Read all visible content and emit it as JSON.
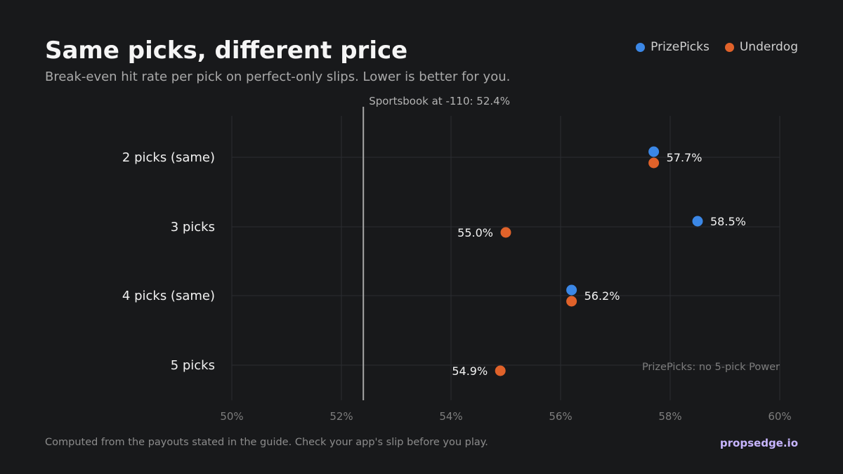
{
  "header": {
    "title": "Same picks, different price",
    "subtitle": "Break-even hit rate per pick on perfect-only slips. Lower is better for you."
  },
  "legend": [
    {
      "label": "PrizePicks",
      "color": "#3b87e6"
    },
    {
      "label": "Underdog",
      "color": "#e0622a"
    }
  ],
  "chart_data": {
    "type": "scatter",
    "title": "Same picks, different price",
    "subtitle": "Break-even hit rate per pick on perfect-only slips. Lower is better for you.",
    "categories": [
      "2 picks (same)",
      "3 picks",
      "4 picks (same)",
      "5 picks"
    ],
    "series": [
      {
        "name": "PrizePicks",
        "color": "#3b87e6",
        "values": [
          57.7,
          58.5,
          56.2,
          null
        ]
      },
      {
        "name": "Underdog",
        "color": "#e0622a",
        "values": [
          57.7,
          55.0,
          56.2,
          54.9
        ]
      }
    ],
    "value_labels": [
      "57.7%",
      "58.5%",
      "55.0%",
      "56.2%",
      "54.9%"
    ],
    "xlim": [
      50,
      60
    ],
    "xticks": [
      50,
      52,
      54,
      56,
      58,
      60
    ],
    "xtick_labels": [
      "50%",
      "52%",
      "54%",
      "56%",
      "58%",
      "60%"
    ],
    "reference_line": {
      "value": 52.4,
      "label": "Sportsbook at -110: 52.4%"
    },
    "annotations": [
      "PrizePicks: no 5-pick Power"
    ],
    "grid": true,
    "legend_position": "top-right"
  },
  "footer": {
    "note": "Computed from the payouts stated in the guide. Check your app's slip before you play.",
    "brand": "propsedge.io"
  }
}
